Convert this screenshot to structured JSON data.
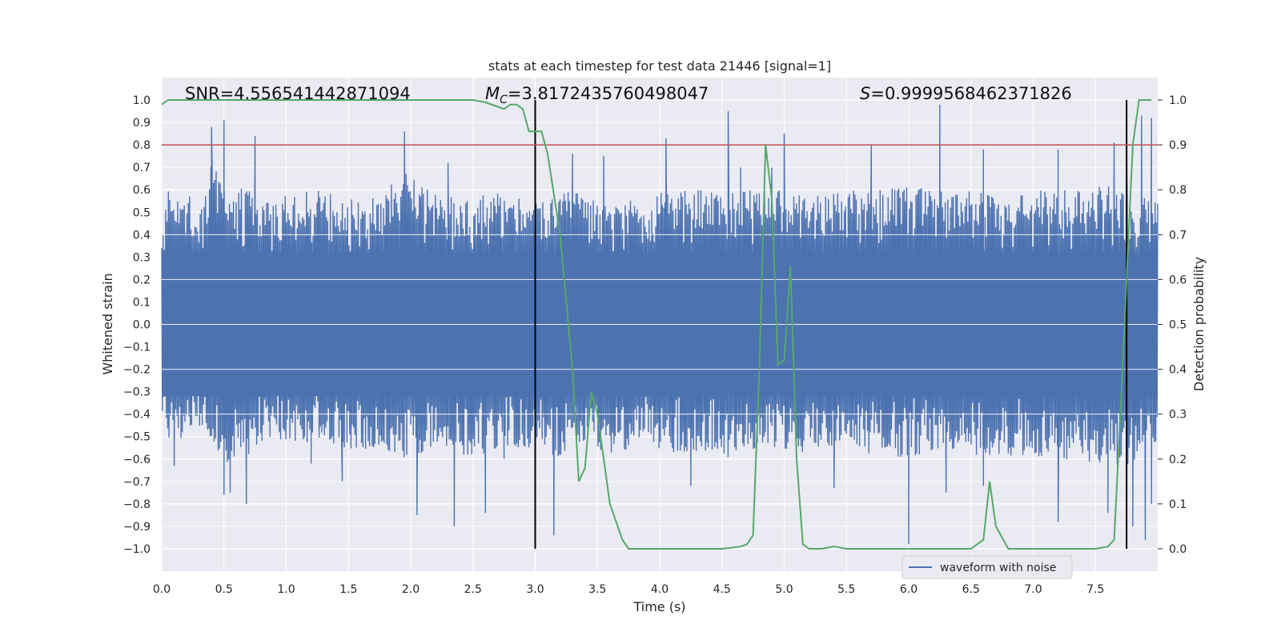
{
  "chart_data": {
    "type": "line",
    "title": "stats at each timestep for test data 21446 [signal=1]",
    "xlabel": "Time (s)",
    "ylabel": "Whitened strain",
    "y2label": "Detection probability",
    "xlim": [
      0.0,
      8.0
    ],
    "ylim": [
      -1.1,
      1.1
    ],
    "y2lim": [
      -0.05,
      1.05
    ],
    "x_ticks": [
      "0.0",
      "0.5",
      "1.0",
      "1.5",
      "2.0",
      "2.5",
      "3.0",
      "3.5",
      "4.0",
      "4.5",
      "5.0",
      "5.5",
      "6.0",
      "6.5",
      "7.0",
      "7.5"
    ],
    "y_ticks": [
      "1.0",
      "0.9",
      "0.8",
      "0.7",
      "0.6",
      "0.5",
      "0.4",
      "0.3",
      "0.2",
      "0.1",
      "0.0",
      "−0.1",
      "−0.2",
      "−0.3",
      "−0.4",
      "−0.5",
      "−0.6",
      "−0.7",
      "−0.8",
      "−0.9",
      "−1.0"
    ],
    "y2_ticks": [
      "1.0",
      "0.9",
      "0.8",
      "0.7",
      "0.6",
      "0.5",
      "0.4",
      "0.3",
      "0.2",
      "0.1",
      "0.0"
    ],
    "annotations": {
      "snr": "SNR=4.556541442871094",
      "mc_symbol": "M",
      "mc_sub": "C",
      "mc_value": "=3.8172435760498047",
      "s_symbol": "S",
      "s_value": "=0.9999568462371826"
    },
    "threshold_line": {
      "y2": 0.9,
      "color": "#c44e52"
    },
    "vertical_markers": [
      {
        "x": 3.0,
        "y_range": [
          -1.0,
          1.0
        ]
      },
      {
        "x": 7.75,
        "y_range": [
          -1.0,
          1.0
        ]
      }
    ],
    "waveform": {
      "name": "waveform with noise",
      "color": "#4c72b0",
      "envelope_upper": [
        [
          0.0,
          0.45
        ],
        [
          0.05,
          0.6
        ],
        [
          0.1,
          0.55
        ],
        [
          0.2,
          0.62
        ],
        [
          0.3,
          0.5
        ],
        [
          0.4,
          0.72
        ],
        [
          0.5,
          0.62
        ],
        [
          0.6,
          0.58
        ],
        [
          0.7,
          0.66
        ],
        [
          0.8,
          0.55
        ],
        [
          0.9,
          0.6
        ],
        [
          1.0,
          0.58
        ],
        [
          1.2,
          0.6
        ],
        [
          1.4,
          0.6
        ],
        [
          1.6,
          0.55
        ],
        [
          1.8,
          0.6
        ],
        [
          1.95,
          0.68
        ],
        [
          2.2,
          0.58
        ],
        [
          2.5,
          0.6
        ],
        [
          2.8,
          0.58
        ],
        [
          3.0,
          0.55
        ],
        [
          3.3,
          0.6
        ],
        [
          3.6,
          0.52
        ],
        [
          3.9,
          0.58
        ],
        [
          4.2,
          0.6
        ],
        [
          4.5,
          0.6
        ],
        [
          4.8,
          0.6
        ],
        [
          5.0,
          0.62
        ],
        [
          5.2,
          0.58
        ],
        [
          5.5,
          0.6
        ],
        [
          5.8,
          0.6
        ],
        [
          6.0,
          0.62
        ],
        [
          6.25,
          0.62
        ],
        [
          6.5,
          0.6
        ],
        [
          6.8,
          0.55
        ],
        [
          7.0,
          0.6
        ],
        [
          7.3,
          0.6
        ],
        [
          7.6,
          0.62
        ],
        [
          7.75,
          0.6
        ],
        [
          8.0,
          0.55
        ]
      ],
      "envelope_lower": [
        [
          0.0,
          -0.42
        ],
        [
          0.05,
          -0.55
        ],
        [
          0.2,
          -0.5
        ],
        [
          0.3,
          -0.45
        ],
        [
          0.5,
          -0.62
        ],
        [
          0.7,
          -0.58
        ],
        [
          0.9,
          -0.5
        ],
        [
          1.1,
          -0.55
        ],
        [
          1.3,
          -0.5
        ],
        [
          1.5,
          -0.58
        ],
        [
          1.7,
          -0.55
        ],
        [
          1.9,
          -0.6
        ],
        [
          2.1,
          -0.58
        ],
        [
          2.3,
          -0.55
        ],
        [
          2.5,
          -0.6
        ],
        [
          2.7,
          -0.55
        ],
        [
          3.0,
          -0.55
        ],
        [
          3.2,
          -0.6
        ],
        [
          3.4,
          -0.55
        ],
        [
          3.6,
          -0.58
        ],
        [
          3.9,
          -0.55
        ],
        [
          4.2,
          -0.58
        ],
        [
          4.5,
          -0.6
        ],
        [
          4.8,
          -0.55
        ],
        [
          5.1,
          -0.58
        ],
        [
          5.4,
          -0.55
        ],
        [
          5.7,
          -0.58
        ],
        [
          6.0,
          -0.6
        ],
        [
          6.3,
          -0.55
        ],
        [
          6.6,
          -0.6
        ],
        [
          6.9,
          -0.58
        ],
        [
          7.2,
          -0.6
        ],
        [
          7.5,
          -0.62
        ],
        [
          7.75,
          -0.65
        ],
        [
          8.0,
          -0.6
        ]
      ],
      "peaks": [
        [
          0.4,
          0.88
        ],
        [
          0.5,
          0.91
        ],
        [
          0.75,
          0.84
        ],
        [
          1.95,
          0.86
        ],
        [
          2.3,
          0.72
        ],
        [
          3.3,
          0.76
        ],
        [
          3.55,
          0.75
        ],
        [
          4.05,
          0.83
        ],
        [
          4.55,
          0.95
        ],
        [
          4.65,
          0.7
        ],
        [
          4.9,
          0.7
        ],
        [
          5.0,
          0.85
        ],
        [
          5.7,
          0.8
        ],
        [
          6.25,
          0.98
        ],
        [
          6.6,
          0.78
        ],
        [
          7.2,
          0.78
        ],
        [
          7.65,
          0.81
        ],
        [
          7.75,
          0.8
        ],
        [
          7.87,
          0.93
        ],
        [
          7.95,
          0.92
        ]
      ],
      "troughs": [
        [
          0.1,
          -0.63
        ],
        [
          0.5,
          -0.76
        ],
        [
          0.55,
          -0.75
        ],
        [
          0.68,
          -0.8
        ],
        [
          1.2,
          -0.62
        ],
        [
          1.45,
          -0.7
        ],
        [
          2.05,
          -0.85
        ],
        [
          2.35,
          -0.9
        ],
        [
          2.6,
          -0.84
        ],
        [
          2.75,
          -0.6
        ],
        [
          3.15,
          -0.94
        ],
        [
          4.25,
          -0.72
        ],
        [
          5.4,
          -0.73
        ],
        [
          6.0,
          -0.98
        ],
        [
          6.3,
          -0.75
        ],
        [
          6.6,
          -0.72
        ],
        [
          7.2,
          -0.88
        ],
        [
          7.6,
          -0.84
        ],
        [
          7.8,
          -0.9
        ],
        [
          7.9,
          -0.96
        ],
        [
          7.95,
          -0.8
        ]
      ]
    },
    "probability": {
      "color": "#55a868",
      "points": [
        [
          0.0,
          0.99
        ],
        [
          0.05,
          1.0
        ],
        [
          0.5,
          1.0
        ],
        [
          1.0,
          1.0
        ],
        [
          1.5,
          1.0
        ],
        [
          2.0,
          1.0
        ],
        [
          2.5,
          1.0
        ],
        [
          2.6,
          0.995
        ],
        [
          2.7,
          0.985
        ],
        [
          2.75,
          0.98
        ],
        [
          2.8,
          0.99
        ],
        [
          2.85,
          0.99
        ],
        [
          2.9,
          0.98
        ],
        [
          2.95,
          0.93
        ],
        [
          3.05,
          0.93
        ],
        [
          3.1,
          0.88
        ],
        [
          3.2,
          0.7
        ],
        [
          3.3,
          0.4
        ],
        [
          3.35,
          0.15
        ],
        [
          3.4,
          0.18
        ],
        [
          3.45,
          0.35
        ],
        [
          3.5,
          0.3
        ],
        [
          3.6,
          0.1
        ],
        [
          3.7,
          0.02
        ],
        [
          3.75,
          0.0
        ],
        [
          4.0,
          0.0
        ],
        [
          4.5,
          0.0
        ],
        [
          4.65,
          0.005
        ],
        [
          4.7,
          0.01
        ],
        [
          4.75,
          0.03
        ],
        [
          4.8,
          0.4
        ],
        [
          4.85,
          0.9
        ],
        [
          4.9,
          0.78
        ],
        [
          4.95,
          0.41
        ],
        [
          5.0,
          0.42
        ],
        [
          5.05,
          0.63
        ],
        [
          5.1,
          0.2
        ],
        [
          5.15,
          0.01
        ],
        [
          5.2,
          0.0
        ],
        [
          5.3,
          0.0
        ],
        [
          5.4,
          0.005
        ],
        [
          5.5,
          0.0
        ],
        [
          6.0,
          0.0
        ],
        [
          6.5,
          0.0
        ],
        [
          6.6,
          0.02
        ],
        [
          6.65,
          0.15
        ],
        [
          6.7,
          0.05
        ],
        [
          6.8,
          0.0
        ],
        [
          7.0,
          0.0
        ],
        [
          7.5,
          0.0
        ],
        [
          7.6,
          0.005
        ],
        [
          7.65,
          0.02
        ],
        [
          7.7,
          0.3
        ],
        [
          7.75,
          0.6
        ],
        [
          7.8,
          0.9
        ],
        [
          7.85,
          1.0
        ],
        [
          7.95,
          1.0
        ]
      ]
    },
    "legend": {
      "location": "lower-right",
      "entries": [
        "waveform with noise"
      ]
    },
    "grid": true
  }
}
